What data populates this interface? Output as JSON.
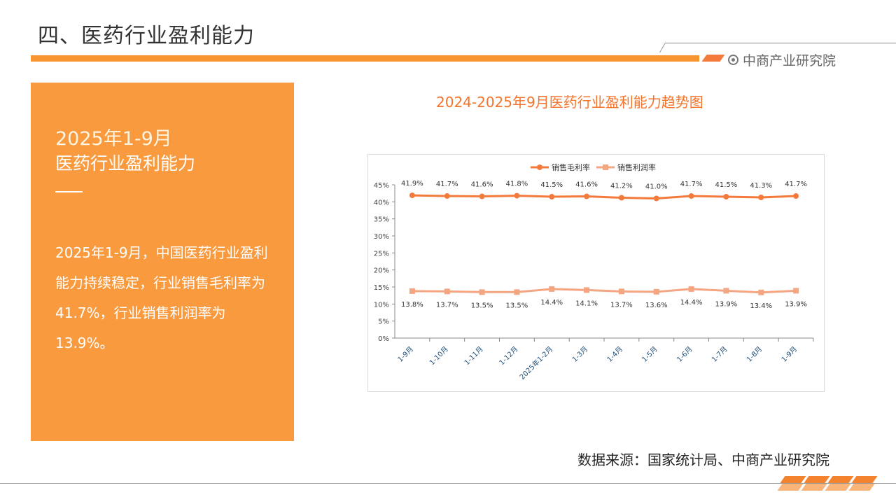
{
  "header": {
    "title": "四、医药行业盈利能力",
    "brand": "中商产业研究院"
  },
  "panel": {
    "heading_line1": "2025年1-9月",
    "heading_line2": "医药行业盈利能力",
    "body": "2025年1-9月，中国医药行业盈利能力持续稳定，行业销售毛利率为41.7%，行业销售利润率为13.9%。"
  },
  "footer": {
    "source": "数据来源：国家统计局、中商产业研究院"
  },
  "chart_data": {
    "type": "line",
    "title": "2024-2025年9月医药行业盈利能力趋势图",
    "categories": [
      "1-9月",
      "1-10月",
      "1-11月",
      "1-12月",
      "2025年1-2月",
      "1-3月",
      "1-4月",
      "1-5月",
      "1-6月",
      "1-7月",
      "1-8月",
      "1-9月"
    ],
    "ylim": [
      0,
      45
    ],
    "yticks": [
      0,
      5,
      10,
      15,
      20,
      25,
      30,
      35,
      40,
      45
    ],
    "legend": "top",
    "series": [
      {
        "name": "销售毛利率",
        "color": "#f47a3c",
        "marker": "circle",
        "values": [
          41.9,
          41.7,
          41.6,
          41.8,
          41.5,
          41.6,
          41.2,
          41.0,
          41.7,
          41.5,
          41.3,
          41.7
        ]
      },
      {
        "name": "销售利润率",
        "color": "#f4a582",
        "marker": "square",
        "values": [
          13.8,
          13.7,
          13.5,
          13.5,
          14.4,
          14.1,
          13.7,
          13.6,
          14.4,
          13.9,
          13.4,
          13.9
        ]
      }
    ]
  }
}
